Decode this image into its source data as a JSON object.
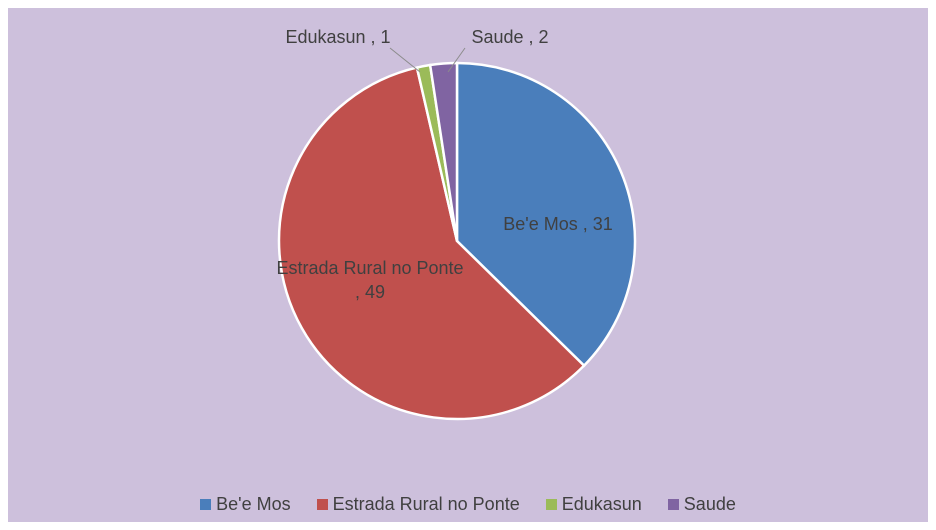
{
  "chart_data": {
    "type": "pie",
    "categories": [
      "Be'e Mos",
      "Estrada Rural no Ponte",
      "Edukasun",
      "Saude"
    ],
    "values": [
      31,
      49,
      1,
      2
    ],
    "value_labels": [
      "Be'e Mos , 31",
      "Estrada Rural no Ponte , 49",
      "Edukasun , 1",
      "Saude , 2"
    ],
    "colors": [
      "#4a7ebb",
      "#c0504d",
      "#9bbb59",
      "#8064a2"
    ],
    "legend": "bottom"
  }
}
